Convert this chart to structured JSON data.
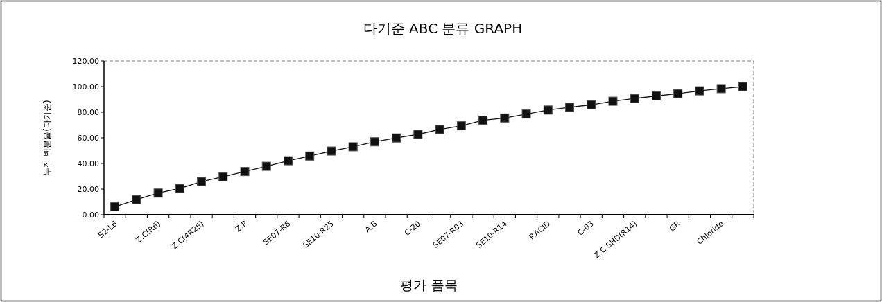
{
  "chart_data": {
    "type": "line",
    "title": "다기준 ABC 분류 GRAPH",
    "xlabel": "평가 품목",
    "ylabel": "누적 백분율(다기준)",
    "categories": [
      "S2-L6",
      null,
      "Z.C(R6)",
      null,
      "Z.C(4R25)",
      null,
      "Z.P",
      null,
      "SE07-R6",
      null,
      "SE10-R25",
      null,
      "A.B",
      null,
      "C-20",
      null,
      "SE07-R03",
      null,
      "SE10-R14",
      null,
      "P.ACID",
      null,
      "C-03",
      null,
      "Z.C SHD(R14)",
      null,
      "GR",
      null,
      "Chloride",
      null
    ],
    "series": [
      {
        "color": "#111111",
        "values": [
          6.2,
          11.8,
          16.9,
          20.5,
          25.9,
          29.6,
          33.7,
          37.8,
          42.1,
          45.8,
          49.7,
          53.0,
          56.9,
          59.9,
          62.7,
          66.5,
          69.4,
          73.7,
          75.5,
          78.6,
          81.7,
          83.8,
          85.8,
          88.6,
          90.7,
          92.7,
          94.5,
          96.7,
          98.4,
          100
        ]
      }
    ],
    "ylim": [
      0,
      120
    ],
    "yticks": [
      {
        "value": 0,
        "label": "0.00"
      },
      {
        "value": 20,
        "label": "20.00"
      },
      {
        "value": 40,
        "label": "40.00"
      },
      {
        "value": 60,
        "label": "60.00"
      },
      {
        "value": 80,
        "label": "80.00"
      },
      {
        "value": 100,
        "label": "100.00"
      },
      {
        "value": 120,
        "label": "120.00"
      }
    ],
    "marker": "square",
    "line_style": "solid"
  }
}
